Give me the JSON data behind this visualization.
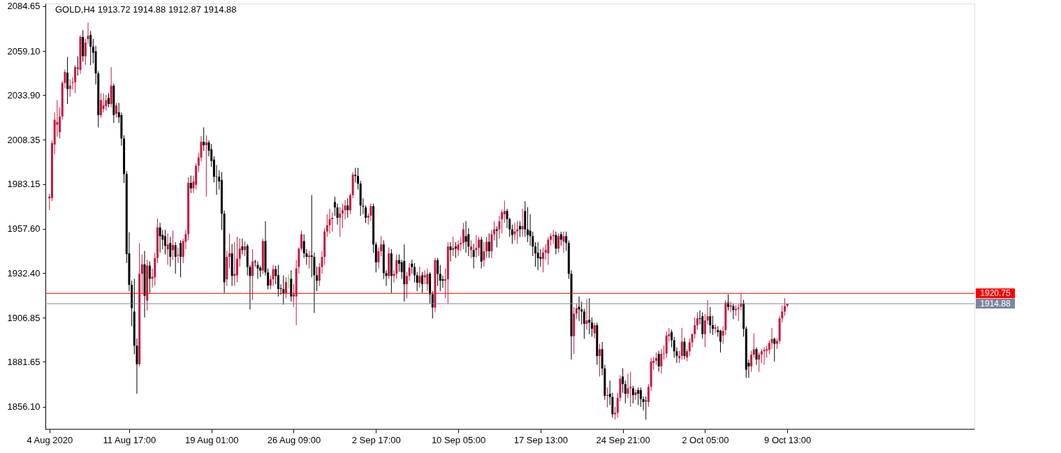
{
  "chart_data": {
    "type": "candlestick",
    "title": "GOLD,H4  1913.72 1914.88 1912.87 1914.88",
    "categories": [
      "4 Aug 2020",
      null,
      null,
      null,
      null,
      null,
      null,
      null,
      null,
      null,
      null,
      null,
      null,
      null,
      null,
      null,
      null,
      null,
      null,
      null,
      null,
      null,
      null,
      null,
      null,
      null,
      null,
      null,
      null,
      null,
      null,
      "11 Aug 17:00",
      null,
      null,
      null,
      null,
      null,
      null,
      null,
      null,
      null,
      null,
      null,
      null,
      null,
      null,
      null,
      null,
      null,
      null,
      null,
      null,
      null,
      null,
      null,
      null,
      null,
      null,
      null,
      null,
      null,
      null,
      null,
      "19 Aug 01:00",
      null,
      null,
      null,
      null,
      null,
      null,
      null,
      null,
      null,
      null,
      null,
      null,
      null,
      null,
      null,
      null,
      null,
      null,
      null,
      null,
      null,
      null,
      null,
      null,
      null,
      null,
      null,
      null,
      null,
      null,
      null,
      "26 Aug 09:00",
      null,
      null,
      null,
      null,
      null,
      null,
      null,
      null,
      null,
      null,
      null,
      null,
      null,
      null,
      null,
      null,
      null,
      null,
      null,
      null,
      null,
      null,
      null,
      null,
      null,
      null,
      null,
      null,
      null,
      null,
      null,
      "2 Sep 17:00",
      null,
      null,
      null,
      null,
      null,
      null,
      null,
      null,
      null,
      null,
      null,
      null,
      null,
      null,
      null,
      null,
      null,
      null,
      null,
      null,
      null,
      null,
      null,
      null,
      null,
      null,
      null,
      null,
      null,
      null,
      null,
      "10 Sep 05:00",
      null,
      null,
      null,
      null,
      null,
      null,
      null,
      null,
      null,
      null,
      null,
      null,
      null,
      null,
      null,
      null,
      null,
      null,
      null,
      null,
      null,
      null,
      null,
      null,
      null,
      null,
      null,
      null,
      null,
      null,
      null,
      "17 Sep 13:00",
      null,
      null,
      null,
      null,
      null,
      null,
      null,
      null,
      null,
      null,
      null,
      null,
      null,
      null,
      null,
      null,
      null,
      null,
      null,
      null,
      null,
      null,
      null,
      null,
      null,
      null,
      null,
      null,
      null,
      null,
      null,
      "24 Sep 21:00",
      null,
      null,
      null,
      null,
      null,
      null,
      null,
      null,
      null,
      null,
      null,
      null,
      null,
      null,
      null,
      null,
      null,
      null,
      null,
      null,
      null,
      null,
      null,
      null,
      null,
      null,
      null,
      null,
      null,
      null,
      null,
      "2 Oct 05:00",
      null,
      null,
      null,
      null,
      null,
      null,
      null,
      null,
      null,
      null,
      null,
      null,
      null,
      null,
      null,
      null,
      null,
      null,
      null,
      null,
      null,
      null,
      null,
      null,
      null,
      null,
      null,
      null,
      null,
      null,
      null,
      "9 Oct 13:00"
    ],
    "ohlc": [
      [
        1975.0,
        1977.5,
        1968.2,
        1976.0
      ],
      [
        1975.2,
        2008.0,
        1973.5,
        2006.5
      ],
      [
        2005.7,
        2024.0,
        2000.2,
        2019.8
      ],
      [
        2017.0,
        2031.1,
        2010.0,
        2018.6
      ],
      [
        2012.7,
        2027.0,
        2009.0,
        2021.7
      ],
      [
        2021.7,
        2042.0,
        2020.0,
        2040.9
      ],
      [
        2040.9,
        2048.5,
        2038.0,
        2047.1
      ],
      [
        2046.7,
        2055.7,
        2028.8,
        2037.4
      ],
      [
        2037.4,
        2043.0,
        2033.0,
        2039.3
      ],
      [
        2040.9,
        2044.0,
        2037.0,
        2041.3
      ],
      [
        2041.3,
        2051.0,
        2035.0,
        2049.9
      ],
      [
        2049.5,
        2056.0,
        2045.0,
        2049.1
      ],
      [
        2048.3,
        2068.0,
        2046.0,
        2067.1
      ],
      [
        2067.1,
        2071.0,
        2053.0,
        2056.1
      ],
      [
        2056.1,
        2066.0,
        2051.0,
        2063.9
      ],
      [
        2065.9,
        2075.3,
        2063.0,
        2067.8
      ],
      [
        2068.2,
        2070.5,
        2051.0,
        2061.6
      ],
      [
        2061.6,
        2066.0,
        2052.0,
        2058.1
      ],
      [
        2058.9,
        2062.0,
        2040.0,
        2046.3
      ],
      [
        2046.3,
        2047.5,
        2015.5,
        2022.5
      ],
      [
        2022.5,
        2035.0,
        2021.0,
        2031.1
      ],
      [
        2026.0,
        2035.0,
        2024.0,
        2028.0
      ],
      [
        2027.6,
        2034.0,
        2025.0,
        2031.1
      ],
      [
        2032.3,
        2035.0,
        2027.0,
        2028.8
      ],
      [
        2028.8,
        2049.9,
        2027.0,
        2039.3
      ],
      [
        2039.3,
        2040.5,
        2018.0,
        2022.5
      ],
      [
        2023.3,
        2029.5,
        2021.0,
        2028.0
      ],
      [
        2024.1,
        2029.5,
        2018.0,
        2021.3
      ],
      [
        2022.5,
        2024.0,
        2005.0,
        2009.2
      ],
      [
        2009.2,
        2011.0,
        1983.7,
        1988.9
      ],
      [
        1988.9,
        1990.5,
        1938.0,
        1943.2
      ],
      [
        1943.6,
        1955.7,
        1922.0,
        1925.6
      ],
      [
        1925.6,
        1928.0,
        1902.0,
        1912.3
      ],
      [
        1910.4,
        1929.1,
        1886.0,
        1890.9
      ],
      [
        1890.9,
        1895.0,
        1863.5,
        1880.3
      ],
      [
        1880.3,
        1949.5,
        1879.0,
        1931.9
      ],
      [
        1931.9,
        1943.0,
        1921.0,
        1937.3
      ],
      [
        1937.3,
        1945.0,
        1907.0,
        1919.4
      ],
      [
        1916.6,
        1940.0,
        1911.0,
        1936.6
      ],
      [
        1936.6,
        1939.0,
        1921.0,
        1929.1
      ],
      [
        1929.1,
        1935.0,
        1924.0,
        1930.3
      ],
      [
        1929.9,
        1944.0,
        1925.0,
        1940.9
      ],
      [
        1940.9,
        1963.5,
        1938.0,
        1958.4
      ],
      [
        1958.4,
        1961.0,
        1944.0,
        1953.4
      ],
      [
        1954.1,
        1957.0,
        1946.0,
        1951.4
      ],
      [
        1953.4,
        1957.0,
        1943.0,
        1947.9
      ],
      [
        1945.9,
        1955.0,
        1937.0,
        1948.7
      ],
      [
        1949.5,
        1953.0,
        1936.0,
        1941.6
      ],
      [
        1945.5,
        1956.5,
        1940.0,
        1948.3
      ],
      [
        1948.3,
        1950.0,
        1931.9,
        1941.6
      ],
      [
        1942.4,
        1947.0,
        1938.0,
        1942.8
      ],
      [
        1949.5,
        1951.0,
        1929.9,
        1941.6
      ],
      [
        1941.6,
        1952.0,
        1938.0,
        1950.6
      ],
      [
        1950.2,
        1957.0,
        1946.0,
        1954.5
      ],
      [
        1954.5,
        1987.0,
        1951.0,
        1983.8
      ],
      [
        1983.8,
        1988.0,
        1978.0,
        1980.7
      ],
      [
        1980.7,
        1988.0,
        1978.0,
        1984.6
      ],
      [
        1982.7,
        1995.0,
        1980.0,
        1993.6
      ],
      [
        1993.6,
        2001.0,
        1990.0,
        1998.3
      ],
      [
        1998.3,
        2010.5,
        1996.0,
        2007.3
      ],
      [
        2007.3,
        2015.5,
        2002.0,
        2005.3
      ],
      [
        2005.3,
        2011.0,
        1976.0,
        2006.9
      ],
      [
        2006.9,
        2008.0,
        1999.0,
        2002.2
      ],
      [
        2003.0,
        2006.0,
        1993.0,
        1996.3
      ],
      [
        1997.1,
        1999.0,
        1984.0,
        1987.3
      ],
      [
        1987.5,
        1994.0,
        1977.0,
        1987.3
      ],
      [
        1987.3,
        1991.0,
        1980.0,
        1984.6
      ],
      [
        1985.4,
        1990.0,
        1957.0,
        1966.3
      ],
      [
        1966.3,
        1968.0,
        1921.0,
        1927.2
      ],
      [
        1928.8,
        1945.0,
        1925.0,
        1941.6
      ],
      [
        1941.6,
        1955.0,
        1935.0,
        1943.6
      ],
      [
        1943.6,
        1949.0,
        1925.0,
        1930.7
      ],
      [
        1930.7,
        1950.0,
        1925.0,
        1931.9
      ],
      [
        1931.1,
        1953.0,
        1927.0,
        1940.5
      ],
      [
        1940.5,
        1952.0,
        1936.0,
        1946.3
      ],
      [
        1947.5,
        1952.0,
        1943.0,
        1945.5
      ],
      [
        1945.5,
        1950.5,
        1942.0,
        1947.5
      ],
      [
        1947.9,
        1949.0,
        1931.0,
        1935.8
      ],
      [
        1935.8,
        1937.0,
        1911.6,
        1930.7
      ],
      [
        1930.7,
        1946.0,
        1917.0,
        1938.9
      ],
      [
        1938.9,
        1940.0,
        1936.0,
        1938.5
      ],
      [
        1937.0,
        1939.0,
        1929.0,
        1935.0
      ],
      [
        1935.4,
        1936.5,
        1930.0,
        1933.8
      ],
      [
        1933.8,
        1952.0,
        1932.0,
        1950.6
      ],
      [
        1950.6,
        1962.0,
        1931.0,
        1932.7
      ],
      [
        1932.7,
        1935.0,
        1923.0,
        1925.2
      ],
      [
        1925.2,
        1931.0,
        1923.0,
        1928.8
      ],
      [
        1928.8,
        1937.0,
        1925.0,
        1934.6
      ],
      [
        1934.6,
        1936.5,
        1926.0,
        1930.7
      ],
      [
        1931.1,
        1937.0,
        1919.0,
        1923.3
      ],
      [
        1923.7,
        1926.0,
        1920.0,
        1923.3
      ],
      [
        1923.3,
        1931.0,
        1914.3,
        1920.9
      ],
      [
        1920.9,
        1930.0,
        1918.0,
        1927.2
      ],
      [
        1929.1,
        1931.7,
        1923.6,
        1929.3
      ],
      [
        1929.1,
        1934.0,
        1916.0,
        1919.0
      ],
      [
        1919.0,
        1926.0,
        1913.0,
        1920.2
      ],
      [
        1919.0,
        1940.0,
        1902.6,
        1935.0
      ],
      [
        1935.8,
        1947.0,
        1932.0,
        1946.3
      ],
      [
        1946.3,
        1956.5,
        1945.0,
        1954.5
      ],
      [
        1950.6,
        1954.5,
        1941.0,
        1943.6
      ],
      [
        1943.6,
        1946.0,
        1937.0,
        1941.6
      ],
      [
        1941.6,
        1945.0,
        1935.0,
        1942.4
      ],
      [
        1942.4,
        1976.8,
        1929.9,
        1941.6
      ],
      [
        1941.6,
        1944.0,
        1909.6,
        1931.1
      ],
      [
        1931.1,
        1936.0,
        1922.0,
        1928.0
      ],
      [
        1928.0,
        1938.0,
        1925.0,
        1935.8
      ],
      [
        1935.8,
        1945.0,
        1932.0,
        1941.6
      ],
      [
        1941.6,
        1958.0,
        1937.0,
        1956.1
      ],
      [
        1956.1,
        1966.0,
        1953.0,
        1959.6
      ],
      [
        1959.6,
        1969.0,
        1955.0,
        1963.1
      ],
      [
        1963.1,
        1967.0,
        1956.0,
        1963.9
      ],
      [
        1972.9,
        1976.0,
        1965.0,
        1969.8
      ],
      [
        1969.8,
        1972.0,
        1960.0,
        1963.9
      ],
      [
        1963.9,
        1970.0,
        1953.0,
        1966.3
      ],
      [
        1966.3,
        1972.0,
        1958.0,
        1968.2
      ],
      [
        1968.2,
        1974.0,
        1963.0,
        1970.9
      ],
      [
        1970.9,
        1975.0,
        1964.0,
        1968.2
      ],
      [
        1968.2,
        1978.0,
        1966.0,
        1976.8
      ],
      [
        1976.8,
        1990.0,
        1975.0,
        1988.5
      ],
      [
        1988.5,
        1992.4,
        1984.0,
        1987.7
      ],
      [
        1987.7,
        1992.4,
        1980.0,
        1983.4
      ],
      [
        1983.4,
        1985.0,
        1965.0,
        1970.9
      ],
      [
        1970.6,
        1975.0,
        1966.0,
        1970.2
      ],
      [
        1969.8,
        1971.0,
        1961.0,
        1963.9
      ],
      [
        1963.9,
        1966.5,
        1960.0,
        1965.1
      ],
      [
        1965.1,
        1972.0,
        1962.0,
        1970.6
      ],
      [
        1970.6,
        1972.0,
        1944.0,
        1948.7
      ],
      [
        1948.7,
        1950.0,
        1932.7,
        1938.5
      ],
      [
        1938.5,
        1947.0,
        1935.0,
        1944.8
      ],
      [
        1944.8,
        1953.5,
        1942.0,
        1948.7
      ],
      [
        1948.7,
        1951.0,
        1929.0,
        1932.3
      ],
      [
        1932.3,
        1934.0,
        1925.0,
        1930.7
      ],
      [
        1930.7,
        1947.0,
        1929.0,
        1943.6
      ],
      [
        1943.6,
        1946.0,
        1921.0,
        1930.7
      ],
      [
        1930.7,
        1934.0,
        1927.0,
        1931.9
      ],
      [
        1931.9,
        1943.0,
        1929.0,
        1939.7
      ],
      [
        1939.7,
        1943.0,
        1933.0,
        1937.7
      ],
      [
        1938.5,
        1940.0,
        1929.0,
        1933.0
      ],
      [
        1939.3,
        1948.7,
        1916.0,
        1926.0
      ],
      [
        1926.0,
        1933.0,
        1918.0,
        1930.7
      ],
      [
        1930.7,
        1938.0,
        1928.0,
        1935.4
      ],
      [
        1937.7,
        1940.0,
        1932.0,
        1935.8
      ],
      [
        1935.8,
        1938.0,
        1927.0,
        1931.1
      ],
      [
        1931.1,
        1933.0,
        1922.0,
        1926.8
      ],
      [
        1926.8,
        1936.0,
        1924.0,
        1930.7
      ],
      [
        1931.1,
        1933.0,
        1921.0,
        1926.0
      ],
      [
        1929.9,
        1934.0,
        1926.0,
        1931.1
      ],
      [
        1926.0,
        1935.0,
        1922.0,
        1931.9
      ],
      [
        1931.9,
        1933.0,
        1915.0,
        1920.2
      ],
      [
        1920.2,
        1922.0,
        1906.5,
        1912.7
      ],
      [
        1912.7,
        1941.0,
        1910.0,
        1939.7
      ],
      [
        1939.7,
        1941.0,
        1925.0,
        1931.9
      ],
      [
        1931.9,
        1937.0,
        1922.0,
        1928.0
      ],
      [
        1928.8,
        1931.0,
        1924.0,
        1928.0
      ],
      [
        1928.0,
        1935.0,
        1918.0,
        1928.8
      ],
      [
        1928.8,
        1950.0,
        1915.0,
        1947.5
      ],
      [
        1947.5,
        1950.0,
        1939.0,
        1945.5
      ],
      [
        1945.5,
        1953.0,
        1942.0,
        1946.7
      ],
      [
        1947.5,
        1950.0,
        1941.0,
        1946.3
      ],
      [
        1945.5,
        1951.0,
        1942.0,
        1948.7
      ],
      [
        1948.7,
        1953.0,
        1945.0,
        1949.5
      ],
      [
        1949.5,
        1961.0,
        1946.0,
        1957.3
      ],
      [
        1953.4,
        1962.0,
        1944.0,
        1950.2
      ],
      [
        1954.5,
        1958.0,
        1942.0,
        1947.5
      ],
      [
        1945.5,
        1951.0,
        1941.0,
        1947.5
      ],
      [
        1945.5,
        1949.0,
        1935.0,
        1941.6
      ],
      [
        1945.5,
        1954.0,
        1941.0,
        1946.7
      ],
      [
        1946.7,
        1953.0,
        1942.0,
        1951.4
      ],
      [
        1951.4,
        1953.0,
        1935.0,
        1938.9
      ],
      [
        1939.7,
        1950.0,
        1936.0,
        1944.8
      ],
      [
        1944.8,
        1953.0,
        1941.0,
        1950.2
      ],
      [
        1950.2,
        1955.0,
        1941.0,
        1944.8
      ],
      [
        1944.8,
        1957.0,
        1941.0,
        1954.5
      ],
      [
        1954.5,
        1962.0,
        1951.0,
        1957.3
      ],
      [
        1957.3,
        1959.0,
        1947.0,
        1956.5
      ],
      [
        1957.3,
        1965.0,
        1952.0,
        1961.9
      ],
      [
        1963.1,
        1968.5,
        1955.0,
        1967.0
      ],
      [
        1965.9,
        1973.7,
        1961.0,
        1967.8
      ],
      [
        1967.8,
        1969.0,
        1958.0,
        1963.1
      ],
      [
        1963.1,
        1964.0,
        1953.0,
        1957.3
      ],
      [
        1957.3,
        1960.0,
        1949.0,
        1954.1
      ],
      [
        1954.5,
        1961.0,
        1951.0,
        1956.1
      ],
      [
        1956.1,
        1962.0,
        1949.0,
        1957.3
      ],
      [
        1959.2,
        1962.0,
        1953.0,
        1957.3
      ],
      [
        1957.3,
        1969.0,
        1953.0,
        1959.2
      ],
      [
        1967.8,
        1973.3,
        1953.0,
        1957.3
      ],
      [
        1957.3,
        1970.0,
        1950.0,
        1954.1
      ],
      [
        1956.5,
        1966.0,
        1948.0,
        1953.4
      ],
      [
        1953.4,
        1956.0,
        1942.0,
        1947.5
      ],
      [
        1947.5,
        1950.0,
        1936.0,
        1943.6
      ],
      [
        1944.0,
        1950.0,
        1934.0,
        1940.9
      ],
      [
        1941.6,
        1946.0,
        1936.0,
        1940.5
      ],
      [
        1940.5,
        1947.0,
        1932.7,
        1944.0
      ],
      [
        1944.0,
        1949.0,
        1940.0,
        1945.5
      ],
      [
        1943.6,
        1953.0,
        1937.0,
        1951.4
      ],
      [
        1951.4,
        1955.0,
        1948.0,
        1953.4
      ],
      [
        1953.4,
        1957.0,
        1949.0,
        1954.1
      ],
      [
        1954.1,
        1956.0,
        1943.0,
        1946.3
      ],
      [
        1946.3,
        1955.0,
        1944.0,
        1953.4
      ],
      [
        1954.5,
        1956.0,
        1948.0,
        1951.4
      ],
      [
        1950.2,
        1956.0,
        1944.0,
        1953.4
      ],
      [
        1953.4,
        1956.0,
        1945.0,
        1949.5
      ],
      [
        1949.5,
        1951.0,
        1929.0,
        1931.9
      ],
      [
        1931.9,
        1934.0,
        1883.0,
        1896.3
      ],
      [
        1896.3,
        1913.0,
        1886.2,
        1909.2
      ],
      [
        1909.2,
        1915.0,
        1906.0,
        1912.3
      ],
      [
        1913.1,
        1919.0,
        1905.0,
        1911.6
      ],
      [
        1911.6,
        1916.0,
        1903.0,
        1910.4
      ],
      [
        1910.4,
        1912.0,
        1894.8,
        1903.4
      ],
      [
        1903.4,
        1917.4,
        1900.0,
        1905.3
      ],
      [
        1905.7,
        1918.0,
        1897.5,
        1904.1
      ],
      [
        1904.1,
        1907.0,
        1896.0,
        1900.6
      ],
      [
        1897.9,
        1904.0,
        1895.0,
        1902.6
      ],
      [
        1902.6,
        1904.0,
        1880.0,
        1885.0
      ],
      [
        1885.0,
        1892.0,
        1873.3,
        1888.9
      ],
      [
        1888.9,
        1893.0,
        1874.0,
        1877.9
      ],
      [
        1877.9,
        1880.0,
        1860.0,
        1862.3
      ],
      [
        1862.3,
        1867.0,
        1855.7,
        1862.7
      ],
      [
        1863.5,
        1871.0,
        1857.0,
        1861.6
      ],
      [
        1861.6,
        1864.0,
        1849.8,
        1851.8
      ],
      [
        1851.8,
        1856.0,
        1848.7,
        1852.6
      ],
      [
        1852.6,
        1864.0,
        1850.0,
        1861.2
      ],
      [
        1861.2,
        1874.0,
        1859.0,
        1872.1
      ],
      [
        1873.3,
        1878.0,
        1864.0,
        1869.0
      ],
      [
        1869.0,
        1871.0,
        1858.0,
        1863.5
      ],
      [
        1863.5,
        1875.0,
        1861.0,
        1866.6
      ],
      [
        1866.6,
        1876.0,
        1856.0,
        1867.4
      ],
      [
        1866.6,
        1868.0,
        1858.0,
        1862.7
      ],
      [
        1862.7,
        1866.0,
        1860.0,
        1864.3
      ],
      [
        1865.5,
        1867.0,
        1857.0,
        1863.5
      ],
      [
        1865.5,
        1867.0,
        1856.0,
        1860.4
      ],
      [
        1860.4,
        1862.0,
        1854.0,
        1858.8
      ],
      [
        1859.6,
        1862.0,
        1848.7,
        1859.2
      ],
      [
        1858.8,
        1869.0,
        1856.0,
        1867.4
      ],
      [
        1867.4,
        1884.0,
        1865.0,
        1881.9
      ],
      [
        1881.1,
        1884.5,
        1877.0,
        1882.3
      ],
      [
        1882.3,
        1887.0,
        1880.0,
        1883.8
      ],
      [
        1886.2,
        1888.0,
        1876.0,
        1879.1
      ],
      [
        1879.1,
        1889.0,
        1875.0,
        1886.2
      ],
      [
        1886.2,
        1891.0,
        1883.0,
        1886.4
      ],
      [
        1886.4,
        1899.0,
        1884.0,
        1896.7
      ],
      [
        1896.3,
        1901.0,
        1893.0,
        1897.5
      ],
      [
        1898.7,
        1900.0,
        1890.0,
        1894.0
      ],
      [
        1894.0,
        1896.0,
        1884.0,
        1887.7
      ],
      [
        1887.7,
        1890.0,
        1881.0,
        1885.0
      ],
      [
        1883.8,
        1888.0,
        1881.0,
        1885.0
      ],
      [
        1885.0,
        1901.0,
        1883.0,
        1893.2
      ],
      [
        1893.2,
        1895.5,
        1883.0,
        1885.0
      ],
      [
        1884.2,
        1889.0,
        1882.0,
        1887.7
      ],
      [
        1887.7,
        1895.0,
        1885.0,
        1892.8
      ],
      [
        1892.8,
        1898.0,
        1890.0,
        1897.5
      ],
      [
        1897.5,
        1907.0,
        1895.0,
        1902.6
      ],
      [
        1902.6,
        1910.0,
        1900.0,
        1906.5
      ],
      [
        1906.5,
        1911.0,
        1903.0,
        1906.1
      ],
      [
        1907.7,
        1910.0,
        1895.0,
        1897.5
      ],
      [
        1897.5,
        1909.0,
        1890.1,
        1905.3
      ],
      [
        1905.3,
        1917.0,
        1903.0,
        1907.7
      ],
      [
        1907.7,
        1913.0,
        1898.0,
        1902.6
      ],
      [
        1902.6,
        1908.0,
        1897.0,
        1900.6
      ],
      [
        1900.6,
        1903.0,
        1898.0,
        1901.4
      ],
      [
        1899.8,
        1902.0,
        1896.0,
        1898.7
      ],
      [
        1899.4,
        1900.0,
        1887.0,
        1893.2
      ],
      [
        1896.7,
        1902.0,
        1892.0,
        1899.4
      ],
      [
        1899.8,
        1917.0,
        1897.0,
        1915.5
      ],
      [
        1915.5,
        1920.2,
        1911.0,
        1913.1
      ],
      [
        1913.1,
        1916.0,
        1910.0,
        1913.9
      ],
      [
        1913.5,
        1915.0,
        1906.0,
        1911.2
      ],
      [
        1911.2,
        1914.0,
        1908.0,
        1911.9
      ],
      [
        1911.9,
        1914.5,
        1905.0,
        1912.7
      ],
      [
        1913.1,
        1920.7,
        1911.0,
        1915.1
      ],
      [
        1915.1,
        1917.0,
        1896.0,
        1900.6
      ],
      [
        1900.6,
        1902.0,
        1872.5,
        1877.2
      ],
      [
        1881.1,
        1883.0,
        1872.5,
        1879.1
      ],
      [
        1879.1,
        1888.0,
        1876.0,
        1885.8
      ],
      [
        1885.8,
        1897.9,
        1884.0,
        1888.9
      ],
      [
        1888.9,
        1890.0,
        1880.0,
        1883.0
      ],
      [
        1883.0,
        1887.0,
        1876.0,
        1885.8
      ],
      [
        1885.8,
        1889.0,
        1881.0,
        1887.7
      ],
      [
        1887.7,
        1890.0,
        1880.0,
        1888.5
      ],
      [
        1888.1,
        1891.0,
        1884.0,
        1888.9
      ],
      [
        1888.5,
        1894.0,
        1886.0,
        1892.4
      ],
      [
        1892.4,
        1901.0,
        1889.0,
        1894.8
      ],
      [
        1894.8,
        1895.5,
        1881.9,
        1892.0
      ],
      [
        1892.0,
        1895.0,
        1889.0,
        1893.6
      ],
      [
        1893.6,
        1908.0,
        1892.0,
        1906.5
      ],
      [
        1906.5,
        1914.0,
        1904.0,
        1910.4
      ],
      [
        1910.4,
        1918.0,
        1908.0,
        1913.5
      ],
      [
        1913.72,
        1914.88,
        1912.87,
        1914.88
      ]
    ],
    "colors": [
      "#c9163e",
      "#c9163e",
      "#c9163e",
      "#c9163e",
      "#c9163e",
      "#c9163e",
      "#c9163e",
      "#000000",
      "#c9163e",
      "#c9163e",
      "#c9163e",
      "#000000",
      "#c9163e",
      "#000000",
      "#c9163e",
      "#c9163e",
      "#000000",
      "#000000",
      "#000000",
      "#000000",
      "#c9163e",
      "#c9163e",
      "#c9163e",
      "#000000",
      "#c9163e",
      "#000000",
      "#c9163e",
      "#000000",
      "#000000",
      "#000000",
      "#000000",
      "#000000",
      "#000000",
      "#000000",
      "#000000",
      "#c9163e",
      "#c9163e",
      "#000000",
      "#c9163e",
      "#000000",
      "#c9163e",
      "#c9163e",
      "#c9163e",
      "#000000",
      "#000000",
      "#000000",
      "#c9163e",
      "#000000",
      "#c9163e",
      "#000000",
      "#c9163e",
      "#000000",
      "#c9163e",
      "#c9163e",
      "#c9163e",
      "#000000",
      "#c9163e",
      "#c9163e",
      "#c9163e",
      "#c9163e",
      "#000000",
      "#c9163e",
      "#000000",
      "#000000",
      "#000000",
      "#000000",
      "#000000",
      "#000000",
      "#000000",
      "#c9163e",
      "#c9163e",
      "#000000",
      "#c9163e",
      "#c9163e",
      "#c9163e",
      "#000000",
      "#c9163e",
      "#000000",
      "#000000",
      "#c9163e",
      "#000000",
      "#000000",
      "#000000",
      "#c9163e",
      "#000000",
      "#000000",
      "#c9163e",
      "#c9163e",
      "#000000",
      "#000000",
      "#000000",
      "#000000",
      "#c9163e",
      "#33dd33",
      "#000000",
      "#c9163e",
      "#c9163e",
      "#c9163e",
      "#c9163e",
      "#000000",
      "#000000",
      "#c9163e",
      "#000000",
      "#000000",
      "#000000",
      "#c9163e",
      "#c9163e",
      "#c9163e",
      "#c9163e",
      "#c9163e",
      "#c9163e",
      "#000000",
      "#000000",
      "#c9163e",
      "#c9163e",
      "#c9163e",
      "#000000",
      "#c9163e",
      "#c9163e",
      "#000000",
      "#000000",
      "#000000",
      "#000000",
      "#000000",
      "#c9163e",
      "#c9163e",
      "#000000",
      "#000000",
      "#c9163e",
      "#c9163e",
      "#000000",
      "#000000",
      "#c9163e",
      "#000000",
      "#c9163e",
      "#c9163e",
      "#000000",
      "#000000",
      "#000000",
      "#c9163e",
      "#c9163e",
      "#000000",
      "#000000",
      "#000000",
      "#c9163e",
      "#000000",
      "#c9163e",
      "#c9163e",
      "#000000",
      "#000000",
      "#c9163e",
      "#000000",
      "#000000",
      "#000000",
      "#c9163e",
      "#c9163e",
      "#000000",
      "#c9163e",
      "#000000",
      "#c9163e",
      "#c9163e",
      "#c9163e",
      "#000000",
      "#000000",
      "#c9163e",
      "#000000",
      "#c9163e",
      "#c9163e",
      "#000000",
      "#c9163e",
      "#c9163e",
      "#000000",
      "#c9163e",
      "#c9163e",
      "#000000",
      "#c9163e",
      "#c9163e",
      "#c9163e",
      "#000000",
      "#000000",
      "#000000",
      "#c9163e",
      "#c9163e",
      "#000000",
      "#c9163e",
      "#000000",
      "#000000",
      "#000000",
      "#000000",
      "#000000",
      "#000000",
      "#000000",
      "#c9163e",
      "#c9163e",
      "#c9163e",
      "#c9163e",
      "#c9163e",
      "#000000",
      "#c9163e",
      "#000000",
      "#c9163e",
      "#000000",
      "#000000",
      "#000000",
      "#c9163e",
      "#c9163e",
      "#000000",
      "#000000",
      "#000000",
      "#c9163e",
      "#000000",
      "#000000",
      "#c9163e",
      "#000000",
      "#c9163e",
      "#000000",
      "#000000",
      "#c9163e",
      "#000000",
      "#000000",
      "#c9163e",
      "#c9163e",
      "#c9163e",
      "#000000",
      "#000000",
      "#c9163e",
      "#c9163e",
      "#000000",
      "#c9163e",
      "#000000",
      "#000000",
      "#000000",
      "#000000",
      "#c9163e",
      "#c9163e",
      "#c9163e",
      "#c9163e",
      "#000000",
      "#c9163e",
      "#c9163e",
      "#c9163e",
      "#c9163e",
      "#000000",
      "#000000",
      "#000000",
      "#c9163e",
      "#c9163e",
      "#000000",
      "#c9163e",
      "#c9163e",
      "#c9163e",
      "#c9163e",
      "#c9163e",
      "#000000",
      "#000000",
      "#c9163e",
      "#c9163e",
      "#000000",
      "#000000",
      "#c9163e",
      "#000000",
      "#000000",
      "#c9163e",
      "#c9163e",
      "#000000",
      "#c9163e",
      "#000000",
      "#c9163e",
      "#c9163e",
      "#c9163e",
      "#000000",
      "#000000",
      "#000000",
      "#c9163e",
      "#c9163e",
      "#000000",
      "#c9163e",
      "#c9163e",
      "#c9163e",
      "#c9163e",
      "#c9163e",
      "#c9163e",
      "#000000",
      "#c9163e",
      "#c9163e",
      "#c9163e",
      "#c9163e",
      "#c9163e"
    ],
    "ylim": [
      1843.2,
      2086.2
    ],
    "yticks": [
      {
        "value": 1856.1,
        "label": "1856.10"
      },
      {
        "value": 1881.65,
        "label": "1881.65"
      },
      {
        "value": 1906.85,
        "label": "1906.85"
      },
      {
        "value": 1932.4,
        "label": "1932.40"
      },
      {
        "value": 1957.6,
        "label": "1957.60"
      },
      {
        "value": 1983.15,
        "label": "1983.15"
      },
      {
        "value": 2008.35,
        "label": "2008.35"
      },
      {
        "value": 2033.9,
        "label": "2033.90"
      },
      {
        "value": 2059.1,
        "label": "2059.10"
      },
      {
        "value": 2084.65,
        "label": "2084.65"
      }
    ],
    "ref_lines": [
      {
        "axis": "y",
        "value": 1920.75,
        "label": "1920.75",
        "color": "#ff0000"
      },
      {
        "axis": "y",
        "value": 1914.88,
        "label": "1914.88",
        "color": "#7b86a0"
      }
    ]
  }
}
